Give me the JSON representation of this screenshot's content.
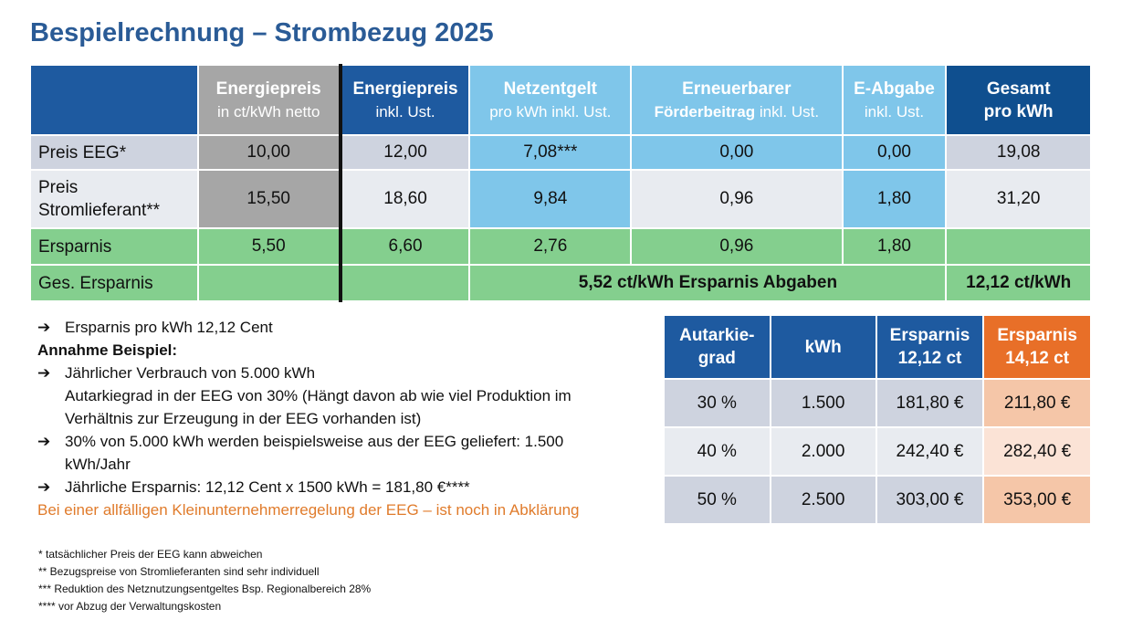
{
  "title": "Bespielrechnung – Strombezug 2025",
  "main_table": {
    "headers": [
      {
        "title": "",
        "sub": ""
      },
      {
        "title": "Energiepreis",
        "sub": "in ct/kWh netto"
      },
      {
        "title": "Energiepreis",
        "sub": "inkl. Ust."
      },
      {
        "title": "Netzentgelt",
        "sub": "pro kWh inkl. Ust."
      },
      {
        "title": "Erneuerbarer",
        "sub_bold": "Förderbeitrag",
        "sub": "inkl. Ust."
      },
      {
        "title": "E-Abgabe",
        "sub": "inkl. Ust."
      },
      {
        "title": "Gesamt",
        "sub": "pro kWh"
      }
    ],
    "rows": [
      {
        "label": "Preis EEG*",
        "values": [
          "10,00",
          "12,00",
          "7,08***",
          "0,00",
          "0,00",
          "19,08"
        ]
      },
      {
        "label": "Preis Stromlieferant**",
        "values": [
          "15,50",
          "18,60",
          "9,84",
          "0,96",
          "1,80",
          "31,20"
        ]
      },
      {
        "label": "Ersparnis",
        "values": [
          "5,50",
          "6,60",
          "2,76",
          "0,96",
          "1,80",
          ""
        ]
      }
    ],
    "total_row": {
      "label": "Ges. Ersparnis",
      "middle": "5,52 ct/kWh Ersparnis Abgaben",
      "total": "12,12 ct/kWh"
    }
  },
  "notes": {
    "line1": "Ersparnis pro kWh 12,12 Cent",
    "line2": "Annahme Beispiel:",
    "line3": "Jährlicher Verbrauch von 5.000 kWh",
    "line4": "Autarkiegrad in der EEG von 30% (Hängt davon ab wie viel Produktion im",
    "line5": "Verhältnis zur Erzeugung in der EEG vorhanden ist)",
    "line6": "30% von 5.000 kWh werden beispielsweise aus der EEG geliefert: 1.500",
    "line7": "kWh/Jahr",
    "line8": "Jährliche Ersparnis:  12,12 Cent x 1500 kWh = 181,80 €****",
    "line9": "Bei einer allfälligen Kleinunternehmerregelung der EEG – ist noch in Abklärung"
  },
  "footnotes": [
    "* tatsächlicher Preis der EEG kann abweichen",
    "** Bezugspreise von Stromlieferanten sind sehr individuell",
    "*** Reduktion des Netznutzungsentgeltes Bsp. Regionalbereich 28%",
    "**** vor Abzug der Verwaltungskosten"
  ],
  "auto_table": {
    "headers": [
      {
        "l1": "Autarkie-",
        "l2": "grad"
      },
      {
        "l1": "kWh",
        "l2": ""
      },
      {
        "l1": "Ersparnis",
        "l2": "12,12 ct"
      },
      {
        "l1": "Ersparnis",
        "l2": "14,12 ct"
      }
    ],
    "rows": [
      [
        "30 %",
        "1.500",
        "181,80 €",
        "211,80 €"
      ],
      [
        "40 %",
        "2.000",
        "242,40 €",
        "282,40 €"
      ],
      [
        "50 %",
        "2.500",
        "303,00 €",
        "353,00 €"
      ]
    ]
  },
  "colors": {
    "title": "#2a5b96",
    "header_blue": "#1e5aa0",
    "header_grey": "#a6a6a6",
    "header_sky": "#7fc6ea",
    "savings_green": "#84cf8e",
    "accent_orange": "#e86f28"
  }
}
